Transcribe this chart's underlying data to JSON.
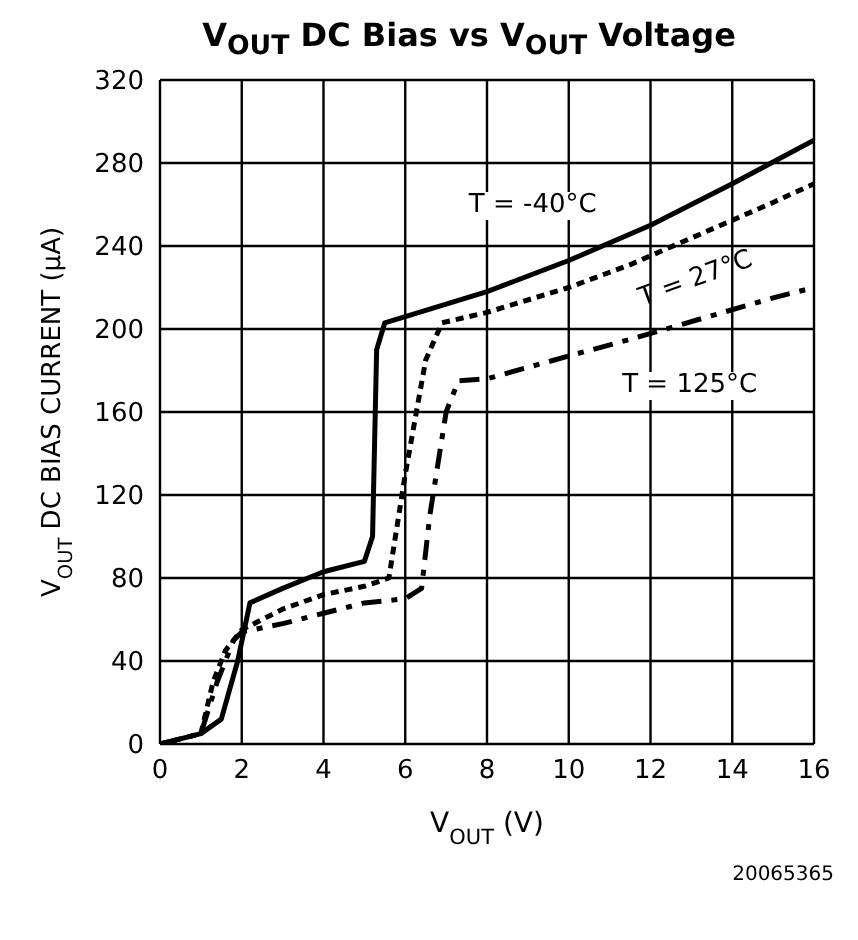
{
  "chart_data": {
    "type": "line",
    "title": "V$_{OUT}$ DC Bias vs V$_{OUT}$ Voltage",
    "xlabel": "V$_{OUT}$ (V)",
    "ylabel": "V$_{OUT}$ DC BIAS CURRENT (µA)",
    "xlim": [
      0,
      16
    ],
    "xticks": [
      0,
      2,
      4,
      6,
      8,
      10,
      12,
      14,
      16
    ],
    "ylim": [
      0,
      320
    ],
    "yticks": [
      0,
      40,
      80,
      120,
      160,
      200,
      240,
      280,
      320
    ],
    "grid": true,
    "legend": false,
    "marker": "none",
    "series": [
      {
        "color": "#000000",
        "line_style": "solid",
        "x": [
          0,
          1,
          1.5,
          1.9,
          2.2,
          3,
          4,
          5,
          5.2,
          5.3,
          5.5,
          6,
          8,
          10,
          12,
          14,
          16
        ],
        "values": [
          0,
          5,
          12,
          40,
          68,
          75,
          83,
          88,
          100,
          190,
          203,
          206,
          218,
          233,
          250,
          270,
          291
        ]
      },
      {
        "color": "#000000",
        "line_style": "dotted",
        "x": [
          0,
          1,
          1.3,
          1.6,
          2,
          3,
          4,
          5,
          5.6,
          6,
          6.5,
          6.9,
          8,
          10,
          11.5,
          15,
          16
        ],
        "values": [
          0,
          5,
          30,
          45,
          55,
          65,
          72,
          76,
          80,
          130,
          185,
          203,
          208,
          220,
          231,
          261,
          270
        ]
      },
      {
        "color": "#000000",
        "line_style": "dashed",
        "x": [
          0,
          1,
          1.4,
          1.8,
          2,
          3,
          4,
          5,
          6,
          6.4,
          6.6,
          7,
          7.3,
          8,
          10,
          11.5,
          15,
          16
        ],
        "values": [
          0,
          5,
          30,
          50,
          54,
          58,
          63,
          68,
          70,
          75,
          110,
          160,
          175,
          176,
          187,
          195,
          215,
          220
        ]
      }
    ],
    "annotations": [
      "T = -40°C",
      "T = 27°C",
      "T = 125°C",
      "20065365"
    ]
  }
}
